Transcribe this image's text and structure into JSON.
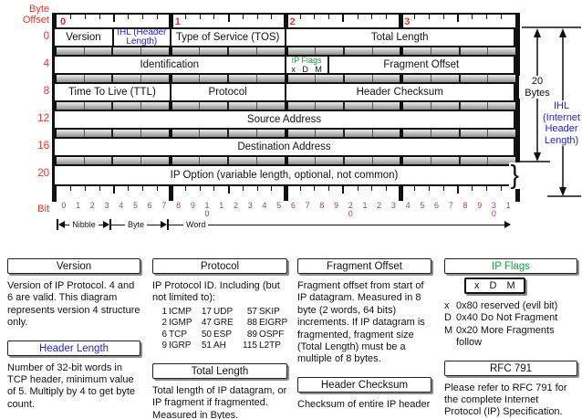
{
  "colors": {
    "red": "#e0362a",
    "blue": "#2323cc",
    "green": "#0f9d3f",
    "purple": "#993d99"
  },
  "diagram": {
    "corner_label": "Byte\nOffset",
    "bit_axis_label": "Bit",
    "top_byte_numbers": [
      "0",
      "1",
      "2",
      "3"
    ],
    "brace_glyph": "}",
    "rows": [
      {
        "offset": "0",
        "fields": [
          {
            "label": "Version",
            "bits": 4
          },
          {
            "label": "IHL (Header Length)",
            "bits": 4,
            "color": "blue"
          },
          {
            "label": "Type of Service (TOS)",
            "bits": 8
          },
          {
            "label": "Total Length",
            "bits": 16
          }
        ]
      },
      {
        "offset": "4",
        "fields": [
          {
            "label": "Identification",
            "bits": 16
          },
          {
            "label": "IP Flags",
            "sub": "x D M",
            "bits": 3,
            "color": "green"
          },
          {
            "label": "Fragment Offset",
            "bits": 13
          }
        ]
      },
      {
        "offset": "8",
        "fields": [
          {
            "label": "Time To Live (TTL)",
            "bits": 8
          },
          {
            "label": "Protocol",
            "bits": 8
          },
          {
            "label": "Header Checksum",
            "bits": 16
          }
        ]
      },
      {
        "offset": "12",
        "fields": [
          {
            "label": "Source Address",
            "bits": 32
          }
        ]
      },
      {
        "offset": "16",
        "fields": [
          {
            "label": "Destination Address",
            "bits": 32
          }
        ]
      },
      {
        "offset": "20",
        "fields": [
          {
            "label": "IP Option (variable length, optional, not common)",
            "bits": 32,
            "brace": true
          }
        ]
      }
    ],
    "bit_numbers": [
      "0",
      "1",
      "2",
      "3",
      "4",
      "5",
      "6",
      "7",
      "8",
      "9",
      "10",
      "1",
      "2",
      "3",
      "4",
      "5",
      "6",
      "7",
      "8",
      "9",
      "20",
      "1",
      "2",
      "3",
      "4",
      "5",
      "6",
      "7",
      "8",
      "9",
      "30",
      "1"
    ],
    "scale_markers": [
      {
        "label": "Nibble",
        "left_arrow": true,
        "right_arrow": true
      },
      {
        "label": "Byte",
        "left_arrow": false,
        "right_arrow": true
      },
      {
        "label": "Word",
        "left_arrow": false,
        "right_arrow": true
      }
    ],
    "annotations": {
      "total_bytes": "20\nBytes",
      "ihl": "IHL\n(Internet\nHeader\nLength)"
    }
  },
  "info_columns": [
    [
      {
        "title": "Version",
        "body": "Version of IP Protocol.  4 and 6 are valid.  This diagram represents version 4 structure only."
      },
      {
        "title": "Header Length",
        "title_color": "blue",
        "body": "Number of 32-bit words in TCP header, minimum value of 5.  Multiply by 4 to get byte count."
      }
    ],
    [
      {
        "title": "Protocol",
        "body": "IP Protocol ID.  Including (but not limited to):",
        "table": [
          [
            "1",
            "ICMP",
            "17",
            "UDP",
            "57",
            "SKIP"
          ],
          [
            "2",
            "IGMP",
            "47",
            "GRE",
            "88",
            "EIGRP"
          ],
          [
            "6",
            "TCP",
            "50",
            "ESP",
            "89",
            "OSPF"
          ],
          [
            "9",
            "IGRP",
            "51",
            "AH",
            "115",
            "L2TP"
          ]
        ]
      },
      {
        "title": "Total Length",
        "body": "Total length of IP datagram, or IP fragment if fragmented.  Measured in Bytes."
      }
    ],
    [
      {
        "title": "Fragment Offset",
        "body": "Fragment offset from start of IP datagram.  Measured in 8 byte (2 words, 64 bits) increments.  If IP datagram is fragmented, fragment size (Total Length) must be a multiple of 8 bytes."
      },
      {
        "title": "Header Checksum",
        "body": "Checksum of entire IP header"
      }
    ],
    [
      {
        "title": "IP Flags",
        "title_color": "green",
        "flags_box": "x D M",
        "flags": [
          [
            "x",
            "0x80 reserved (evil bit)"
          ],
          [
            "D",
            "0x40 Do Not Fragment"
          ],
          [
            "M",
            "0x20 More Fragments follow"
          ]
        ]
      },
      {
        "title": "RFC 791",
        "body": "Please refer to RFC 791 for the complete Internet Protocol (IP) Specification."
      }
    ]
  ]
}
